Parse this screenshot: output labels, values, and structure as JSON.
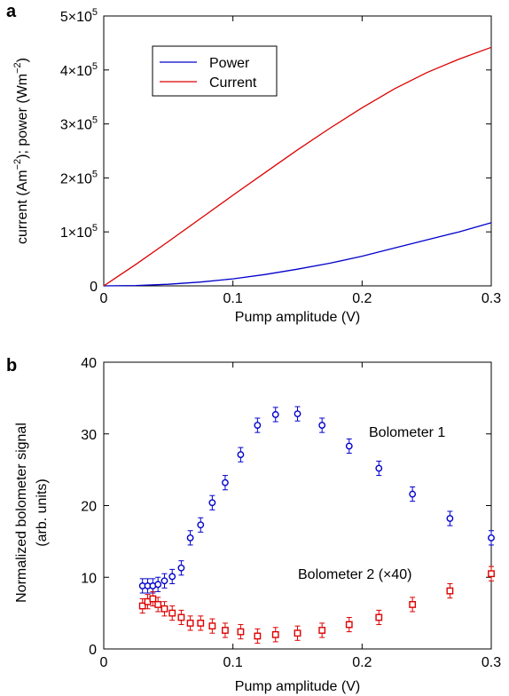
{
  "chart_data": [
    {
      "panel_label": "a",
      "type": "line",
      "xlabel": "Pump amplitude (V)",
      "ylabel_parts": [
        "current (Am",
        "−2",
        "); power (Wm",
        "−2",
        ")"
      ],
      "xlim": [
        0,
        0.3
      ],
      "ylim": [
        0,
        500000
      ],
      "xticks": [
        {
          "v": 0,
          "label": "0"
        },
        {
          "v": 0.1,
          "label": "0.1"
        },
        {
          "v": 0.2,
          "label": "0.2"
        },
        {
          "v": 0.3,
          "label": "0.3"
        }
      ],
      "yticks": [
        {
          "v": 0,
          "mant": "0",
          "exp": ""
        },
        {
          "v": 100000,
          "mant": "1×10",
          "exp": "5"
        },
        {
          "v": 200000,
          "mant": "2×10",
          "exp": "5"
        },
        {
          "v": 300000,
          "mant": "3×10",
          "exp": "5"
        },
        {
          "v": 400000,
          "mant": "4×10",
          "exp": "5"
        },
        {
          "v": 500000,
          "mant": "5×10",
          "exp": "5"
        }
      ],
      "legend_position": "top-left",
      "series": [
        {
          "name": "Power",
          "color": "#0000cc",
          "x": [
            0,
            0.025,
            0.05,
            0.075,
            0.1,
            0.125,
            0.15,
            0.175,
            0.2,
            0.225,
            0.25,
            0.275,
            0.3
          ],
          "y": [
            0,
            700,
            3000,
            7000,
            13000,
            21000,
            31000,
            42000,
            55000,
            70000,
            85000,
            100000,
            117000
          ]
        },
        {
          "name": "Current",
          "color": "#dd0000",
          "x": [
            0,
            0.025,
            0.05,
            0.075,
            0.1,
            0.125,
            0.15,
            0.175,
            0.2,
            0.225,
            0.25,
            0.275,
            0.3
          ],
          "y": [
            0,
            40000,
            82000,
            125000,
            168000,
            210000,
            252000,
            292000,
            330000,
            365000,
            395000,
            420000,
            442000
          ]
        }
      ]
    },
    {
      "panel_label": "b",
      "type": "scatter",
      "xlabel": "Pump amplitude (V)",
      "ylabel_lines": [
        "Normalized bolometer signal",
        "(arb. units)"
      ],
      "xlim": [
        0,
        0.3
      ],
      "ylim": [
        0,
        40
      ],
      "xticks": [
        {
          "v": 0,
          "label": "0"
        },
        {
          "v": 0.1,
          "label": "0.1"
        },
        {
          "v": 0.2,
          "label": "0.2"
        },
        {
          "v": 0.3,
          "label": "0.3"
        }
      ],
      "yticks": [
        {
          "v": 0,
          "label": "0"
        },
        {
          "v": 10,
          "label": "10"
        },
        {
          "v": 20,
          "label": "20"
        },
        {
          "v": 30,
          "label": "30"
        },
        {
          "v": 40,
          "label": "40"
        }
      ],
      "series": [
        {
          "name": "Bolometer 1",
          "color": "#0000cc",
          "marker": "circle",
          "x": [
            0.03,
            0.034,
            0.038,
            0.042,
            0.047,
            0.053,
            0.06,
            0.067,
            0.075,
            0.084,
            0.094,
            0.106,
            0.119,
            0.133,
            0.15,
            0.169,
            0.19,
            0.213,
            0.239,
            0.268,
            0.3
          ],
          "y": [
            8.8,
            8.8,
            8.8,
            9.0,
            9.5,
            10.1,
            11.3,
            15.5,
            17.3,
            20.4,
            23.2,
            27.1,
            31.2,
            32.7,
            32.8,
            31.2,
            28.3,
            25.2,
            21.6,
            18.2,
            15.5
          ],
          "err": [
            1.0,
            1.0,
            1.0,
            1.0,
            1.0,
            1.0,
            1.0,
            1.0,
            1.0,
            1.0,
            1.0,
            1.0,
            1.0,
            1.0,
            1.0,
            1.0,
            1.0,
            1.0,
            1.0,
            1.0,
            1.0
          ]
        },
        {
          "name": "Bolometer 2 (×40)",
          "color": "#dd0000",
          "marker": "square",
          "x": [
            0.03,
            0.034,
            0.038,
            0.042,
            0.047,
            0.053,
            0.06,
            0.067,
            0.075,
            0.084,
            0.094,
            0.106,
            0.119,
            0.133,
            0.15,
            0.169,
            0.19,
            0.213,
            0.239,
            0.268,
            0.3
          ],
          "y": [
            6.0,
            6.6,
            7.0,
            6.2,
            5.6,
            5.0,
            4.4,
            3.6,
            3.6,
            3.2,
            2.6,
            2.4,
            1.8,
            2.0,
            2.2,
            2.6,
            3.4,
            4.4,
            6.2,
            8.1,
            10.5
          ],
          "err": [
            1.0,
            1.0,
            1.0,
            1.0,
            1.0,
            1.0,
            1.0,
            1.0,
            1.0,
            1.0,
            1.0,
            1.0,
            1.0,
            1.0,
            1.0,
            1.0,
            1.0,
            1.0,
            1.0,
            1.0,
            1.0
          ]
        }
      ]
    }
  ]
}
